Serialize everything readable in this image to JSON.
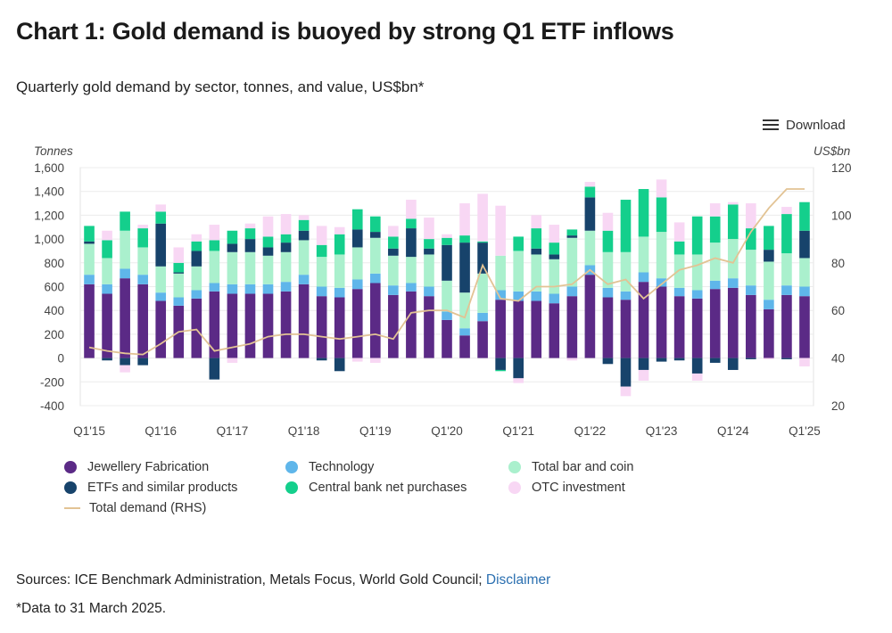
{
  "header": {
    "title": "Chart 1: Gold demand is buoyed by strong Q1 ETF inflows",
    "subtitle": "Quarterly gold demand by sector, tonnes, and value, US$bn*",
    "download_label": "Download"
  },
  "footer": {
    "sources_text": "Sources: ICE Benchmark Administration, Metals Focus, World Gold Council; ",
    "disclaimer_link": "Disclaimer",
    "footnote": "*Data to 31 March 2025."
  },
  "legend": [
    {
      "label": "Jewellery Fabrication",
      "color": "#5b2a86",
      "kind": "dot"
    },
    {
      "label": "Technology",
      "color": "#5fb6ea",
      "kind": "dot"
    },
    {
      "label": "Total bar and coin",
      "color": "#aaf0cd",
      "kind": "dot"
    },
    {
      "label": "ETFs and similar products",
      "color": "#17436b",
      "kind": "dot"
    },
    {
      "label": "Central bank net purchases",
      "color": "#14cf8c",
      "kind": "dot"
    },
    {
      "label": "OTC investment",
      "color": "#f8d7f4",
      "kind": "dot"
    },
    {
      "label": "Total demand (RHS)",
      "color": "#e2c394",
      "kind": "line"
    }
  ],
  "chart_data": {
    "type": "bar",
    "stacked": true,
    "ylabel": "Tonnes",
    "y2label": "US$bn",
    "ylim": [
      -400,
      1600
    ],
    "y_ticks": [
      "1,600",
      "1,400",
      "1,200",
      "1,000",
      "800",
      "600",
      "400",
      "200",
      "0",
      "-200",
      "-400"
    ],
    "y2lim": [
      20,
      120
    ],
    "y2_ticks": [
      "120",
      "100",
      "80",
      "60",
      "40",
      "20"
    ],
    "categories": [
      "Q1'15",
      "Q2'15",
      "Q3'15",
      "Q4'15",
      "Q1'16",
      "Q2'16",
      "Q3'16",
      "Q4'16",
      "Q1'17",
      "Q2'17",
      "Q3'17",
      "Q4'17",
      "Q1'18",
      "Q2'18",
      "Q3'18",
      "Q4'18",
      "Q1'19",
      "Q2'19",
      "Q3'19",
      "Q4'19",
      "Q1'20",
      "Q2'20",
      "Q3'20",
      "Q4'20",
      "Q1'21",
      "Q2'21",
      "Q3'21",
      "Q4'21",
      "Q1'22",
      "Q2'22",
      "Q3'22",
      "Q4'22",
      "Q1'23",
      "Q2'23",
      "Q3'23",
      "Q4'23",
      "Q1'24",
      "Q2'24",
      "Q3'24",
      "Q4'24",
      "Q1'25"
    ],
    "x_tick_labels": [
      "Q1'15",
      "Q1'16",
      "Q1'17",
      "Q1'18",
      "Q1'19",
      "Q1'20",
      "Q1'21",
      "Q1'22",
      "Q1'23",
      "Q1'24",
      "Q1'25"
    ],
    "series": [
      {
        "name": "Jewellery Fabrication",
        "color": "#5b2a86",
        "values": [
          620,
          540,
          670,
          620,
          480,
          440,
          500,
          560,
          540,
          540,
          540,
          560,
          620,
          520,
          510,
          580,
          630,
          530,
          560,
          520,
          320,
          190,
          310,
          490,
          480,
          480,
          460,
          520,
          700,
          510,
          490,
          640,
          600,
          520,
          500,
          580,
          590,
          530,
          410,
          530,
          520
        ]
      },
      {
        "name": "Technology",
        "color": "#5fb6ea",
        "values": [
          80,
          80,
          80,
          80,
          70,
          70,
          70,
          70,
          80,
          80,
          80,
          80,
          80,
          80,
          80,
          80,
          80,
          80,
          70,
          80,
          70,
          60,
          70,
          80,
          80,
          80,
          80,
          80,
          80,
          80,
          70,
          80,
          70,
          70,
          70,
          70,
          80,
          80,
          80,
          80,
          80
        ]
      },
      {
        "name": "Total bar and coin",
        "color": "#aaf0cd",
        "values": [
          260,
          220,
          320,
          230,
          220,
          200,
          200,
          270,
          270,
          270,
          240,
          250,
          290,
          250,
          280,
          270,
          300,
          250,
          220,
          270,
          260,
          300,
          330,
          290,
          340,
          310,
          290,
          410,
          290,
          300,
          330,
          300,
          390,
          280,
          300,
          320,
          330,
          300,
          320,
          270,
          240
        ]
      },
      {
        "name": "ETFs and similar products",
        "color": "#17436b",
        "values": [
          20,
          -20,
          -60,
          -60,
          360,
          10,
          130,
          -180,
          70,
          110,
          70,
          80,
          80,
          -20,
          -110,
          150,
          50,
          60,
          240,
          50,
          300,
          420,
          260,
          -100,
          -170,
          50,
          40,
          20,
          280,
          -50,
          -240,
          -100,
          -30,
          -20,
          -130,
          -40,
          -100,
          -10,
          100,
          -10,
          230
        ]
      },
      {
        "name": "Central bank net purchases",
        "color": "#14cf8c",
        "values": [
          130,
          150,
          160,
          160,
          100,
          80,
          80,
          90,
          110,
          90,
          90,
          70,
          90,
          100,
          170,
          170,
          130,
          100,
          80,
          80,
          60,
          60,
          10,
          -10,
          120,
          170,
          100,
          50,
          90,
          180,
          440,
          400,
          290,
          110,
          320,
          220,
          290,
          180,
          200,
          330,
          240
        ]
      },
      {
        "name": "OTC investment",
        "color": "#f8d7f4",
        "values": [
          0,
          80,
          -60,
          30,
          60,
          130,
          60,
          130,
          -40,
          40,
          170,
          170,
          40,
          160,
          60,
          -30,
          -40,
          90,
          160,
          180,
          30,
          270,
          400,
          420,
          -40,
          110,
          150,
          -20,
          40,
          150,
          -80,
          -90,
          150,
          160,
          -60,
          110,
          20,
          210,
          -10,
          60,
          -70
        ]
      }
    ],
    "line_series": {
      "name": "Total demand (RHS)",
      "axis": "right",
      "color": "#e2c394",
      "values": [
        44.5,
        43,
        42,
        41.5,
        46,
        51,
        52,
        43,
        44.5,
        46,
        49,
        50,
        50,
        49,
        48,
        49,
        50,
        48,
        59,
        60,
        60,
        57,
        79,
        65,
        64,
        70,
        70,
        71,
        77,
        71,
        73,
        65,
        71,
        77,
        79,
        82,
        80,
        93,
        103,
        111,
        111
      ]
    }
  }
}
